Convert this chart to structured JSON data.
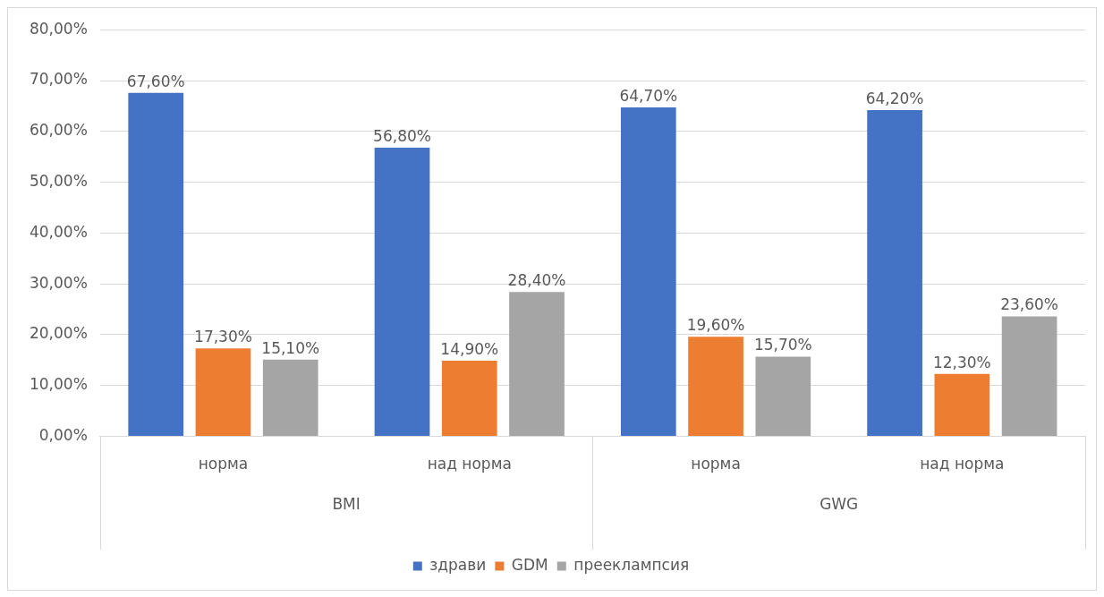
{
  "chart_data": {
    "type": "bar",
    "categories": [
      "норма",
      "над норма",
      "норма",
      "над норма"
    ],
    "annotations": [
      "BMI",
      "GWG"
    ],
    "series": [
      {
        "name": "здрави",
        "color": "#4472c4",
        "values": [
          67.6,
          56.8,
          64.7,
          64.2
        ],
        "value_labels": [
          "67,60%",
          "56,80%",
          "64,70%",
          "64,20%"
        ]
      },
      {
        "name": "GDM",
        "color": "#ed7d31",
        "values": [
          17.3,
          14.9,
          19.6,
          12.3
        ],
        "value_labels": [
          "17,30%",
          "14,90%",
          "19,60%",
          "12,30%"
        ]
      },
      {
        "name": "прееклампсия",
        "color": "#a5a5a5",
        "values": [
          15.1,
          28.4,
          15.7,
          23.6
        ],
        "value_labels": [
          "15,10%",
          "28,40%",
          "15,70%",
          "23,60%"
        ]
      }
    ],
    "ylim": [
      0,
      80
    ],
    "yticks": [
      {
        "value": 0,
        "label": "0,00%"
      },
      {
        "value": 10,
        "label": "10,00%"
      },
      {
        "value": 20,
        "label": "20,00%"
      },
      {
        "value": 30,
        "label": "30,00%"
      },
      {
        "value": 40,
        "label": "40,00%"
      },
      {
        "value": 50,
        "label": "50,00%"
      },
      {
        "value": 60,
        "label": "60,00%"
      },
      {
        "value": 70,
        "label": "70,00%"
      },
      {
        "value": 80,
        "label": "80,00%"
      }
    ],
    "grid": "y",
    "legend": "bottom"
  }
}
